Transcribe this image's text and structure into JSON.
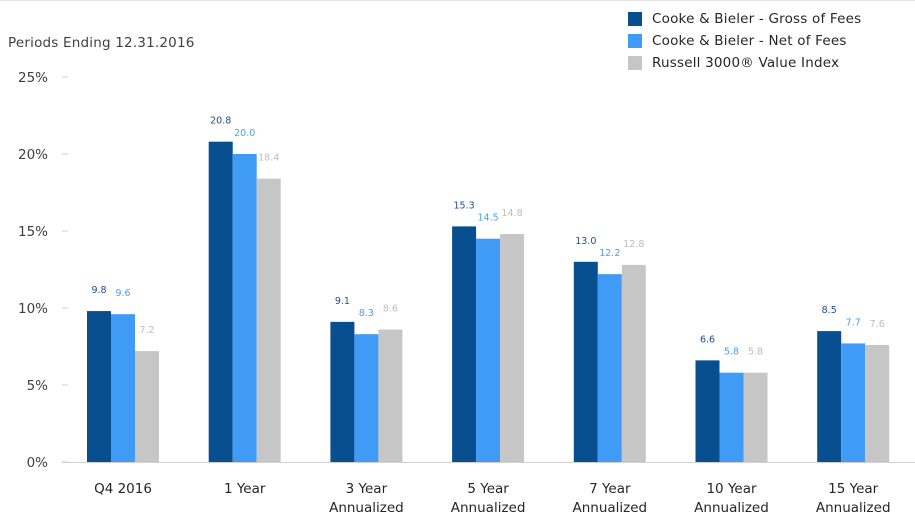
{
  "subtitle": "Periods Ending 12.31.2016",
  "chart_data": {
    "type": "bar",
    "title": "",
    "xlabel": "",
    "ylabel": "",
    "ylim": [
      0,
      25
    ],
    "yticks": [
      "0%",
      "5%",
      "10%",
      "15%",
      "20%",
      "25%"
    ],
    "ytick_values": [
      0,
      5,
      10,
      15,
      20,
      25
    ],
    "grid": false,
    "legend_position": "top-right",
    "categories": [
      [
        "Q4 2016"
      ],
      [
        "1 Year"
      ],
      [
        "3 Year",
        "Annualized"
      ],
      [
        "5 Year",
        "Annualized"
      ],
      [
        "7 Year",
        "Annualized"
      ],
      [
        "10 Year",
        "Annualized"
      ],
      [
        "15 Year",
        "Annualized"
      ]
    ],
    "series": [
      {
        "name": "Cooke & Bieler - Gross of Fees",
        "color": "#084f8f",
        "label_color": "#1f4e8c",
        "values": [
          9.8,
          20.8,
          9.1,
          15.3,
          13.0,
          6.6,
          8.5
        ],
        "labels": [
          "9.8",
          "20.8",
          "9.1",
          "15.3",
          "13.0",
          "6.6",
          "8.5"
        ]
      },
      {
        "name": "Cooke & Bieler - Net of Fees",
        "color": "#3f9bf5",
        "label_color": "#4a9ef5",
        "values": [
          9.6,
          20.0,
          8.3,
          14.5,
          12.2,
          5.8,
          7.7
        ],
        "labels": [
          "9.6",
          "20.0",
          "8.3",
          "14.5",
          "12.2",
          "5.8",
          "7.7"
        ]
      },
      {
        "name": "Russell 3000® Value Index",
        "color": "#c6c6c6",
        "label_color": "#bdbdbd",
        "values": [
          7.2,
          18.4,
          8.6,
          14.8,
          12.8,
          5.8,
          7.6
        ],
        "labels": [
          "7.2",
          "18.4",
          "8.6",
          "14.8",
          "12.8",
          "5.8",
          "7.6"
        ]
      }
    ]
  }
}
